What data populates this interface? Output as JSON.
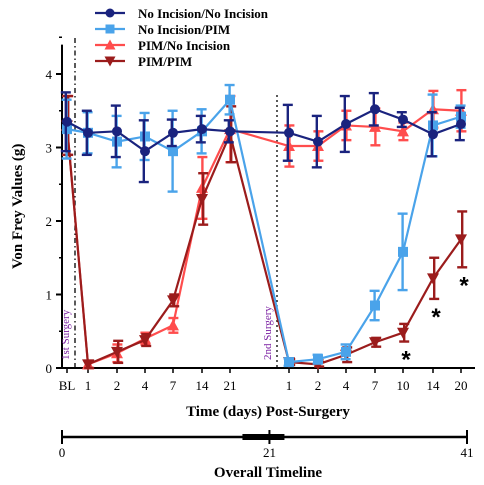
{
  "chart_data": {
    "type": "line",
    "ylabel": "Von Frey Values (g)",
    "xlabel": "Time (days) Post-Surgery",
    "ylim": [
      0,
      4.4
    ],
    "yticks": [
      "0",
      "1",
      "2",
      "3",
      "4"
    ],
    "categories": [
      "BL",
      "1",
      "2",
      "4",
      "7",
      "14",
      "21",
      "1",
      "2",
      "4",
      "7",
      "10",
      "14",
      "20"
    ],
    "surgery_labels": [
      "1st Surgery",
      "2nd Surgery"
    ],
    "legend_position": "top",
    "series": [
      {
        "name": "No Incision/No Incision",
        "color": "#1a237e",
        "marker": "circle",
        "values": [
          3.35,
          3.2,
          3.22,
          2.95,
          3.2,
          3.25,
          3.22,
          3.2,
          3.08,
          3.32,
          3.52,
          3.38,
          3.18,
          3.32
        ],
        "errors": [
          0.4,
          0.3,
          0.35,
          0.42,
          0.18,
          0.18,
          0.15,
          0.38,
          0.35,
          0.38,
          0.22,
          0.1,
          0.3,
          0.22
        ]
      },
      {
        "name": "No Incision/PIM",
        "color": "#4aa3ea",
        "marker": "square",
        "values": [
          3.25,
          3.2,
          3.08,
          3.15,
          2.95,
          3.22,
          3.65,
          0.08,
          0.12,
          0.22,
          0.85,
          1.58,
          3.3,
          3.42
        ],
        "errors": [
          0.4,
          0.28,
          0.35,
          0.32,
          0.55,
          0.3,
          0.2,
          0.05,
          0.06,
          0.1,
          0.2,
          0.52,
          0.42,
          0.15
        ]
      },
      {
        "name": "PIM/No Incision",
        "color": "#ff4d4d",
        "marker": "triangle-up",
        "values": [
          3.3,
          0.05,
          0.2,
          0.4,
          0.58,
          2.45,
          3.25,
          3.02,
          3.02,
          3.3,
          3.28,
          3.22,
          3.52,
          3.5
        ],
        "errors": [
          0.4,
          0.05,
          0.12,
          0.08,
          0.1,
          0.42,
          0.45,
          0.28,
          0.2,
          0.2,
          0.25,
          0.12,
          0.25,
          0.28
        ]
      },
      {
        "name": "PIM/PIM",
        "color": "#9b1c1c",
        "marker": "triangle-down",
        "values": [
          3.3,
          0.05,
          0.22,
          0.38,
          0.92,
          2.3,
          3.18,
          0.08,
          0.05,
          0.18,
          0.35,
          0.48,
          1.22,
          1.75
        ],
        "errors": [
          0.4,
          0.05,
          0.15,
          0.08,
          0.08,
          0.35,
          0.38,
          0.04,
          0.03,
          0.1,
          0.06,
          0.12,
          0.28,
          0.38
        ]
      }
    ],
    "significance": [
      {
        "category_index": 11,
        "text": "*"
      },
      {
        "category_index": 12,
        "text": "*"
      },
      {
        "category_index": 13,
        "text": "*"
      }
    ],
    "timeline": {
      "title": "Overall Timeline",
      "ticks": [
        "0",
        "21",
        "41"
      ],
      "range": [
        0,
        41
      ]
    }
  }
}
